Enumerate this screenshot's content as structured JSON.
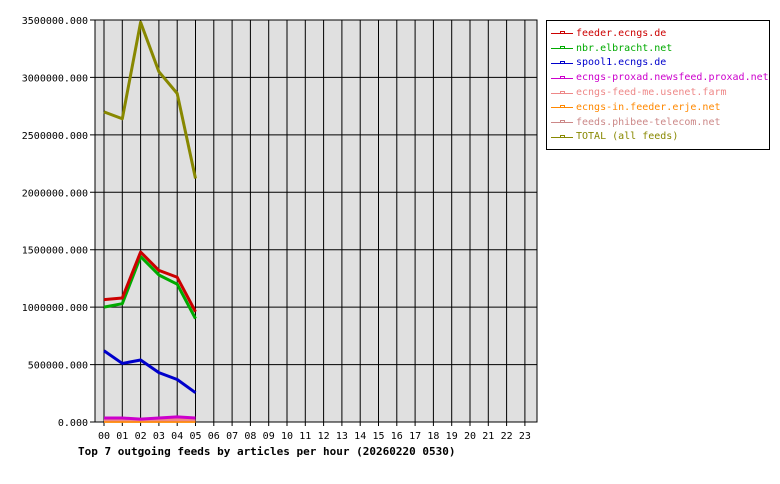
{
  "chart_data": {
    "type": "line",
    "title": "Top 7 outgoing feeds by articles per hour (20260220 0530)",
    "xlabel": "",
    "ylabel": "",
    "x": [
      "00",
      "01",
      "02",
      "03",
      "04",
      "05",
      "06",
      "07",
      "08",
      "09",
      "10",
      "11",
      "12",
      "13",
      "14",
      "15",
      "16",
      "17",
      "18",
      "19",
      "20",
      "21",
      "22",
      "23"
    ],
    "ylim": [
      0,
      3500000
    ],
    "yticks": [
      "0.000",
      "500000.000",
      "1000000.000",
      "1500000.000",
      "2000000.000",
      "2500000.000",
      "3000000.000",
      "3500000.000"
    ],
    "grid": true,
    "legend_position": "right",
    "series": [
      {
        "name": "feeder.ecngs.de",
        "color": "#cc0000",
        "values": [
          1065000,
          1080000,
          1480000,
          1320000,
          1260000,
          960000
        ]
      },
      {
        "name": "nbr.elbracht.net",
        "color": "#00aa00",
        "values": [
          1000000,
          1030000,
          1440000,
          1280000,
          1200000,
          900000
        ]
      },
      {
        "name": "spool1.ecngs.de",
        "color": "#0000cc",
        "values": [
          620000,
          510000,
          540000,
          430000,
          370000,
          255000
        ]
      },
      {
        "name": "ecngs-proxad.newsfeed.proxad.net",
        "color": "#cc00cc",
        "values": [
          35000,
          35000,
          25000,
          35000,
          45000,
          35000
        ]
      },
      {
        "name": "ecngs-feed-me.usenet.farm",
        "color": "#ee8888",
        "values": [
          20000,
          20000,
          20000,
          20000,
          20000,
          20000
        ]
      },
      {
        "name": "ecngs-in.feeder.erje.net",
        "color": "#ff8800",
        "values": [
          5000,
          5000,
          5000,
          5000,
          5000,
          5000
        ]
      },
      {
        "name": "feeds.phibee-telecom.net",
        "color": "#cc8888",
        "values": [
          15000,
          15000,
          15000,
          15000,
          15000,
          15000
        ]
      },
      {
        "name": "TOTAL (all feeds)",
        "color": "#888800",
        "values": [
          2700000,
          2640000,
          3480000,
          3050000,
          2860000,
          2120000
        ]
      }
    ]
  }
}
